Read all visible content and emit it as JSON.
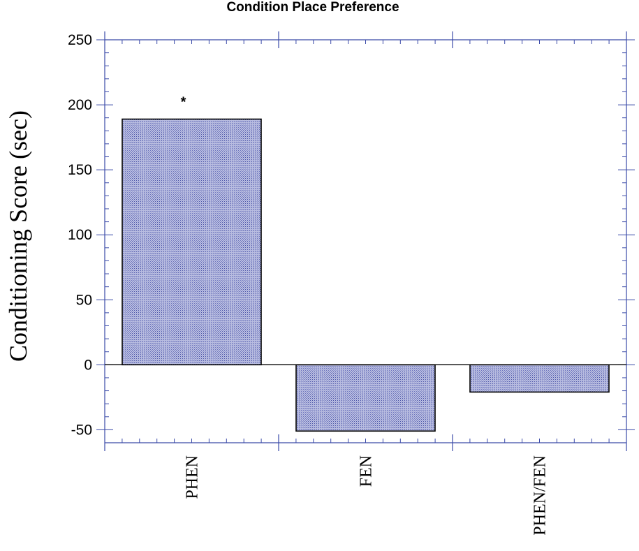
{
  "chart_data": {
    "type": "bar",
    "title": "Condition Place Preference",
    "xlabel": "",
    "ylabel": "Conditioning Score (sec)",
    "categories": [
      "PHEN",
      "FEN",
      "PHEN/FEN"
    ],
    "values": [
      189,
      -51,
      -21
    ],
    "ylim": [
      -60,
      250
    ],
    "yticks": [
      250,
      200,
      150,
      100,
      50,
      0,
      -50
    ],
    "ytick_labels": [
      "250",
      "200",
      "150",
      "100",
      "50",
      "0",
      "-50"
    ],
    "annotations": [
      {
        "category": "PHEN",
        "text": "*"
      }
    ],
    "grid": false,
    "colors": {
      "bar_fill": "#a3a8d6",
      "bar_stroke": "#000000",
      "axis": "#3a4aa8",
      "zero_line": "#000000"
    }
  }
}
